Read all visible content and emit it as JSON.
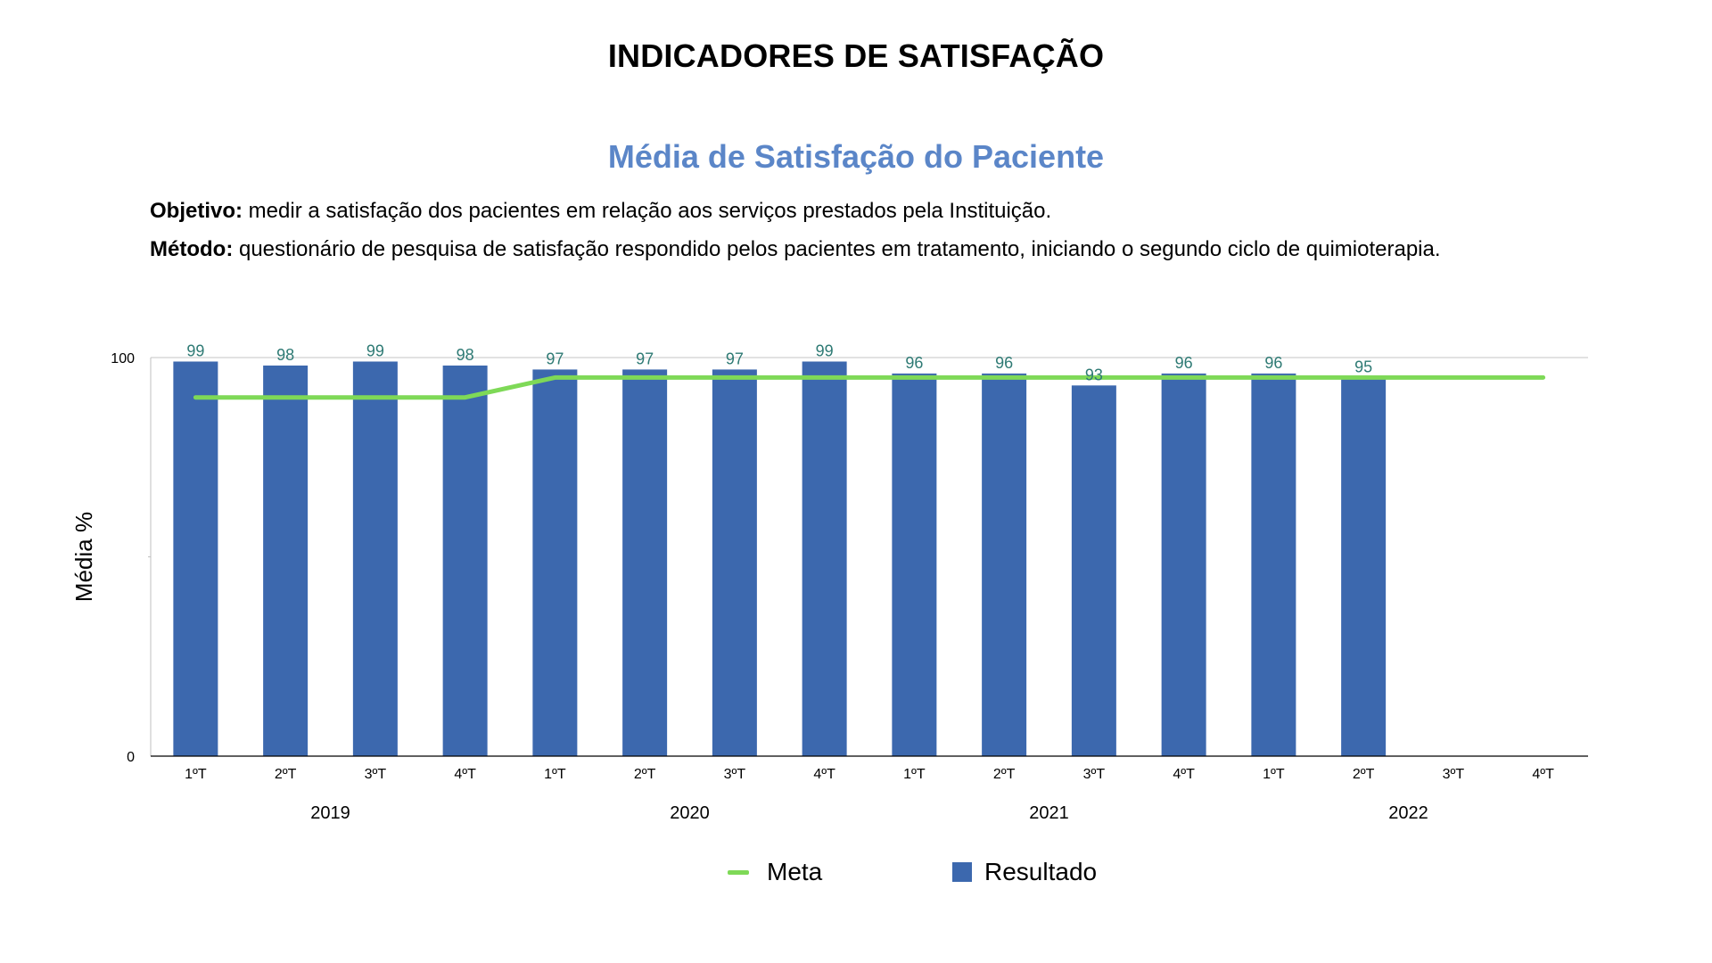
{
  "page": {
    "title": "INDICADORES DE SATISFAÇÃO"
  },
  "description": {
    "objetivo_label": "Objetivo:",
    "objetivo_text": " medir a satisfação dos pacientes em relação aos serviços prestados pela Instituição.",
    "metodo_label": "Método:",
    "metodo_text": " questionário de pesquisa de satisfação respondido pelos pacientes em tratamento, iniciando o segundo ciclo de quimioterapia."
  },
  "colors": {
    "bar": "#3c68ae",
    "meta_line": "#7ed957",
    "data_label": "#2e7a74",
    "title_accent": "#5b86c8",
    "grid": "#d9d9d9",
    "axis": "#000000"
  },
  "chart_data": {
    "type": "bar",
    "title": "Média de Satisfação do Paciente",
    "xlabel": "",
    "ylabel": "Média %",
    "ylim": [
      0,
      100
    ],
    "yticks": [
      0,
      100
    ],
    "grid": true,
    "legend_position": "bottom",
    "categories": [
      "1ºT",
      "2ºT",
      "3ºT",
      "4ºT",
      "1ºT",
      "2ºT",
      "3ºT",
      "4ºT",
      "1ºT",
      "2ºT",
      "3ºT",
      "4ºT",
      "1ºT",
      "2ºT",
      "3ºT",
      "4ºT"
    ],
    "groups": [
      {
        "label": "2019",
        "span": 4
      },
      {
        "label": "2020",
        "span": 4
      },
      {
        "label": "2021",
        "span": 4
      },
      {
        "label": "2022",
        "span": 4
      }
    ],
    "series": [
      {
        "name": "Resultado",
        "type": "bar",
        "values": [
          99,
          98,
          99,
          98,
          97,
          97,
          97,
          99,
          96,
          96,
          93,
          96,
          96,
          95,
          null,
          null
        ]
      },
      {
        "name": "Meta",
        "type": "line",
        "values": [
          90,
          90,
          90,
          90,
          95,
          95,
          95,
          95,
          95,
          95,
          95,
          95,
          95,
          95,
          95,
          95
        ]
      }
    ]
  }
}
